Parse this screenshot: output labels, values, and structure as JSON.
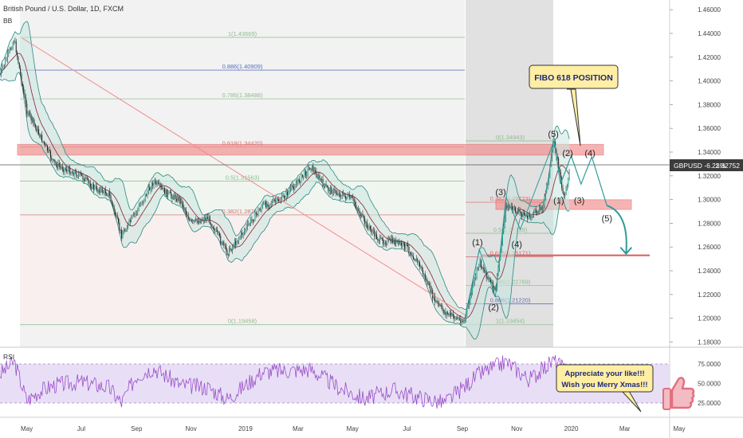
{
  "header": {
    "symbol_title": "British Pound / U.S. Dollar, 1D, FXCM",
    "indicator_bb": "BB",
    "indicator_rsi": "RSI"
  },
  "price_badge": {
    "label": "GBPUSD -6.23%",
    "value": "1.32752"
  },
  "annotations": {
    "callout_fibo": "FIBO 618 POSITION",
    "callout_thanks_line1": "Appreciate your like!!!",
    "callout_thanks_line2": "Wish you Merry Xmas!!!"
  },
  "fib_left": [
    {
      "label": "1(1.43669)",
      "value": 1.43669
    },
    {
      "label": "0.886(1.40909)",
      "value": 1.40909
    },
    {
      "label": "0.786(1.38488)",
      "value": 1.38488
    },
    {
      "label": "0.618(1.34420)",
      "value": 1.3442
    },
    {
      "label": "0.5(1.31563)",
      "value": 1.31563
    },
    {
      "label": "0.382(1.28706)",
      "value": 1.28706
    },
    {
      "label": "0(1.19458)",
      "value": 1.19458
    }
  ],
  "fib_right": [
    {
      "label": "0(1.34943)",
      "value": 1.34943
    },
    {
      "label": "0.382(1.29773)",
      "value": 1.29773
    },
    {
      "label": "0.5(1.27159)",
      "value": 1.27159
    },
    {
      "label": "0.618(1.25171)",
      "value": 1.25171
    },
    {
      "label": "0.786(1.22769)",
      "value": 1.22769
    },
    {
      "label": "0.886(1.21220)",
      "value": 1.2122
    },
    {
      "label": "1(1.19454)",
      "value": 1.19454
    }
  ],
  "waves": [
    "(1)",
    "(2)",
    "(3)",
    "(4)",
    "(5)",
    "(1)",
    "(2)",
    "(3)",
    "(4)",
    "(5)"
  ],
  "chart_data": {
    "type": "line",
    "title": "British Pound / U.S. Dollar, 1D, FXCM",
    "series": [
      {
        "name": "GBPUSD",
        "points": [
          [
            "2018-04-01",
            1.405
          ],
          [
            "2018-04-17",
            1.435
          ],
          [
            "2018-05-01",
            1.375
          ],
          [
            "2018-05-15",
            1.355
          ],
          [
            "2018-06-01",
            1.33
          ],
          [
            "2018-06-15",
            1.325
          ],
          [
            "2018-07-01",
            1.32
          ],
          [
            "2018-07-15",
            1.31
          ],
          [
            "2018-08-01",
            1.305
          ],
          [
            "2018-08-15",
            1.27
          ],
          [
            "2018-09-01",
            1.29
          ],
          [
            "2018-09-20",
            1.315
          ],
          [
            "2018-10-05",
            1.305
          ],
          [
            "2018-10-20",
            1.3
          ],
          [
            "2018-11-01",
            1.28
          ],
          [
            "2018-11-20",
            1.285
          ],
          [
            "2018-12-12",
            1.255
          ],
          [
            "2019-01-01",
            1.275
          ],
          [
            "2019-01-20",
            1.295
          ],
          [
            "2019-02-10",
            1.3
          ],
          [
            "2019-03-01",
            1.315
          ],
          [
            "2019-03-15",
            1.328
          ],
          [
            "2019-04-01",
            1.31
          ],
          [
            "2019-04-15",
            1.305
          ],
          [
            "2019-05-01",
            1.3
          ],
          [
            "2019-05-15",
            1.28
          ],
          [
            "2019-06-01",
            1.265
          ],
          [
            "2019-06-15",
            1.265
          ],
          [
            "2019-07-01",
            1.26
          ],
          [
            "2019-07-15",
            1.245
          ],
          [
            "2019-08-01",
            1.215
          ],
          [
            "2019-08-12",
            1.205
          ],
          [
            "2019-09-03",
            1.197
          ],
          [
            "2019-09-20",
            1.248
          ],
          [
            "2019-10-08",
            1.222
          ],
          [
            "2019-10-20",
            1.295
          ],
          [
            "2019-11-01",
            1.29
          ],
          [
            "2019-11-15",
            1.285
          ],
          [
            "2019-12-01",
            1.295
          ],
          [
            "2019-12-13",
            1.349
          ],
          [
            "2019-12-24",
            1.3
          ],
          [
            "2019-12-31",
            1.3275
          ]
        ]
      },
      {
        "name": "RSI",
        "points": [
          [
            "2018-04-01",
            62
          ],
          [
            "2018-04-17",
            78
          ],
          [
            "2018-05-01",
            28
          ],
          [
            "2018-05-15",
            40
          ],
          [
            "2018-06-01",
            48
          ],
          [
            "2018-07-01",
            52
          ],
          [
            "2018-08-01",
            45
          ],
          [
            "2018-08-15",
            25
          ],
          [
            "2018-09-01",
            60
          ],
          [
            "2018-09-20",
            70
          ],
          [
            "2018-10-20",
            48
          ],
          [
            "2018-11-20",
            45
          ],
          [
            "2018-12-12",
            30
          ],
          [
            "2019-01-20",
            65
          ],
          [
            "2019-03-15",
            68
          ],
          [
            "2019-04-15",
            45
          ],
          [
            "2019-05-15",
            30
          ],
          [
            "2019-06-15",
            42
          ],
          [
            "2019-07-15",
            32
          ],
          [
            "2019-08-12",
            25
          ],
          [
            "2019-09-20",
            62
          ],
          [
            "2019-10-20",
            78
          ],
          [
            "2019-11-15",
            55
          ],
          [
            "2019-12-13",
            80
          ],
          [
            "2019-12-31",
            60
          ]
        ]
      }
    ],
    "y_axis_labels": [
      "1.46000",
      "1.44000",
      "1.42000",
      "1.40000",
      "1.38000",
      "1.36000",
      "1.34000",
      "1.32000",
      "1.30000",
      "1.28000",
      "1.26000",
      "1.24000",
      "1.22000",
      "1.20000",
      "1.18000"
    ],
    "ylim": [
      1.172,
      1.466
    ],
    "rsi_axis_labels": [
      "75.0000",
      "50.0000",
      "25.0000"
    ],
    "rsi_ylim": [
      5,
      88
    ],
    "x_axis_labels": [
      "May",
      "Jul",
      "Sep",
      "Nov",
      "2019",
      "Mar",
      "May",
      "Jul",
      "Sep",
      "Nov",
      "2020",
      "Mar",
      "May"
    ],
    "projection": {
      "target": 1.253,
      "points": [
        [
          "2019-12-13",
          1.3494
        ],
        [
          "2019-12-20",
          1.313
        ],
        [
          "2020-01-01",
          1.337
        ],
        [
          "2020-01-12",
          1.313
        ],
        [
          "2020-01-24",
          1.336
        ],
        [
          "2020-02-10",
          1.295
        ]
      ]
    },
    "zones": [
      {
        "kind": "resistance",
        "from": 1.3395,
        "to": 1.3445
      },
      {
        "kind": "support",
        "from": 1.293,
        "to": 1.2985
      }
    ],
    "grid": false,
    "legend": "none"
  },
  "colors": {
    "candle_up": "#26a69a",
    "candle_down": "#222222",
    "bb_fill": "#c9e6df",
    "bb_line": "#2a8a82",
    "bb_mid": "#8b1f3a",
    "fib_line": "#8fbc8f",
    "zone": "#f28b8b",
    "rsi_band": "#e6dcf5",
    "rsi_line": "#9b4ec9",
    "projection": "#2d9b9b",
    "callout_bg": "#ffeea3"
  }
}
